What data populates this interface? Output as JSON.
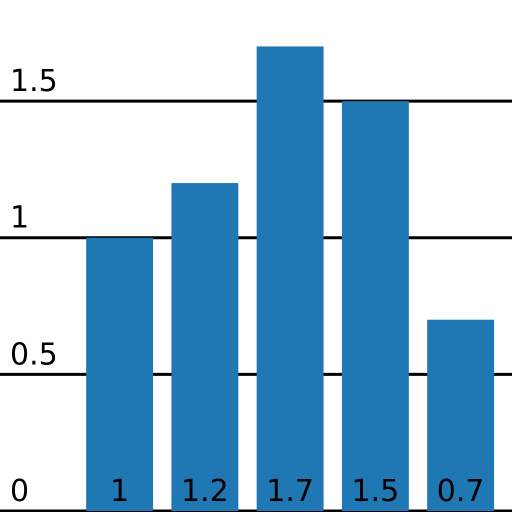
{
  "chart_data": {
    "type": "bar",
    "categories": [
      null,
      null,
      null,
      null,
      null
    ],
    "values": [
      1,
      1.2,
      1.7,
      1.5,
      0.7
    ],
    "color": "#1f77b4",
    "ylim": [
      0,
      1.87
    ],
    "yticks": [
      0,
      0.5,
      1,
      1.5
    ],
    "grid": true
  }
}
